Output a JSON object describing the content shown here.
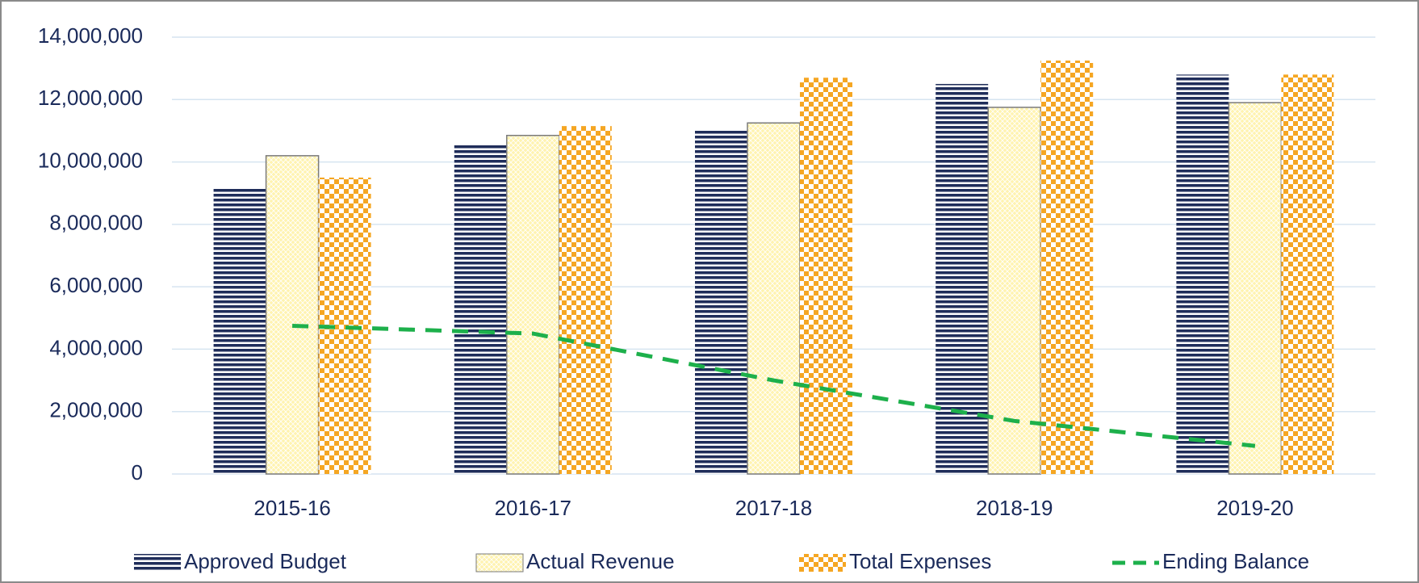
{
  "chart_data": {
    "type": "bar",
    "categories": [
      "2015-16",
      "2016-17",
      "2017-18",
      "2018-19",
      "2019-20"
    ],
    "series": [
      {
        "name": "Approved Budget",
        "color": "#1f2d5a",
        "values": [
          9150000,
          10550000,
          11000000,
          12500000,
          12800000
        ]
      },
      {
        "name": "Actual Revenue",
        "color": "#fff3b0",
        "values": [
          10200000,
          10850000,
          11250000,
          11750000,
          11900000
        ]
      },
      {
        "name": "Total Expenses",
        "color": "#f5a623",
        "values": [
          9500000,
          11150000,
          12700000,
          13250000,
          12800000
        ]
      },
      {
        "name": "Ending Balance",
        "color": "#1db04b",
        "type": "line",
        "values": [
          4750000,
          4500000,
          3000000,
          1700000,
          900000
        ]
      }
    ],
    "ylim": [
      0,
      14000000
    ],
    "yticks": [
      0,
      {
        "value": 2000000,
        "label": "2,000,000"
      },
      {
        "value": 4000000,
        "label": "4,000,000"
      },
      {
        "value": 6000000,
        "label": "6,000,000"
      },
      {
        "value": 8000000,
        "label": "8,000,000"
      },
      {
        "value": 10000000,
        "label": "10,000,000"
      },
      {
        "value": 12000000,
        "label": "12,000,000"
      },
      {
        "value": 14000000,
        "label": "14,000,000"
      }
    ],
    "grid": true,
    "legend": "bottom"
  }
}
